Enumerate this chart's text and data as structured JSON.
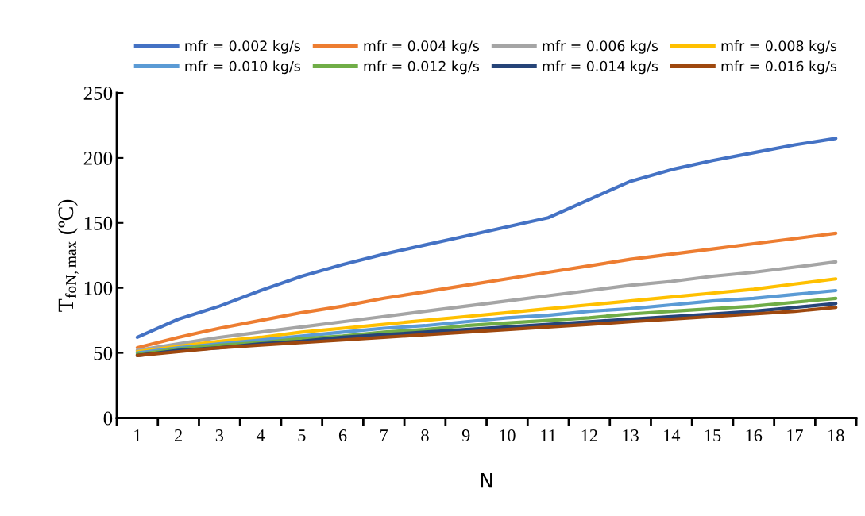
{
  "chart_data": {
    "type": "line",
    "xlabel": "N",
    "ylabel": "T$_{foN,max}$ (ºC)",
    "categories": [
      "1",
      "2",
      "3",
      "4",
      "5",
      "6",
      "7",
      "8",
      "9",
      "10",
      "11",
      "12",
      "13",
      "14",
      "15",
      "16",
      "17",
      "18"
    ],
    "ylim": [
      0,
      250
    ],
    "yticks": [
      0,
      50,
      100,
      150,
      200,
      250
    ],
    "grid": false,
    "legend": "top",
    "marker": "none",
    "line_style": "solid",
    "series": [
      {
        "name": "mfr = 0.002 kg/s",
        "color": "#4472c4",
        "values": [
          62,
          76,
          86,
          98,
          109,
          118,
          126,
          133,
          140,
          147,
          154,
          168,
          182,
          191,
          198,
          204,
          210,
          215
        ]
      },
      {
        "name": "mfr = 0.004 kg/s",
        "color": "#ed7d31",
        "values": [
          54,
          62,
          69,
          75,
          81,
          86,
          92,
          97,
          102,
          107,
          112,
          117,
          122,
          126,
          130,
          134,
          138,
          142
        ]
      },
      {
        "name": "mfr = 0.006 kg/s",
        "color": "#a5a5a5",
        "values": [
          52,
          57,
          62,
          66,
          70,
          74,
          78,
          82,
          86,
          90,
          94,
          98,
          102,
          105,
          109,
          112,
          116,
          120
        ]
      },
      {
        "name": "mfr = 0.008 kg/s",
        "color": "#ffc000",
        "values": [
          51,
          55,
          59,
          62,
          66,
          69,
          72,
          75,
          78,
          81,
          84,
          87,
          90,
          93,
          96,
          99,
          103,
          107
        ]
      },
      {
        "name": "mfr = 0.010 kg/s",
        "color": "#5b9bd5",
        "values": [
          50,
          54,
          57,
          60,
          63,
          66,
          69,
          71,
          74,
          77,
          79,
          82,
          84,
          87,
          90,
          92,
          95,
          98
        ]
      },
      {
        "name": "mfr = 0.012 kg/s",
        "color": "#70ad47",
        "values": [
          49,
          53,
          56,
          58,
          61,
          63,
          66,
          68,
          71,
          73,
          75,
          77,
          80,
          82,
          84,
          86,
          89,
          92
        ]
      },
      {
        "name": "mfr = 0.014 kg/s",
        "color": "#264478",
        "values": [
          48,
          52,
          54,
          57,
          59,
          62,
          64,
          66,
          68,
          70,
          72,
          74,
          76,
          78,
          80,
          82,
          85,
          88
        ]
      },
      {
        "name": "mfr = 0.016 kg/s",
        "color": "#9e480e",
        "values": [
          48,
          51,
          54,
          56,
          58,
          60,
          62,
          64,
          66,
          68,
          70,
          72,
          74,
          76,
          78,
          80,
          82,
          85
        ]
      }
    ]
  }
}
